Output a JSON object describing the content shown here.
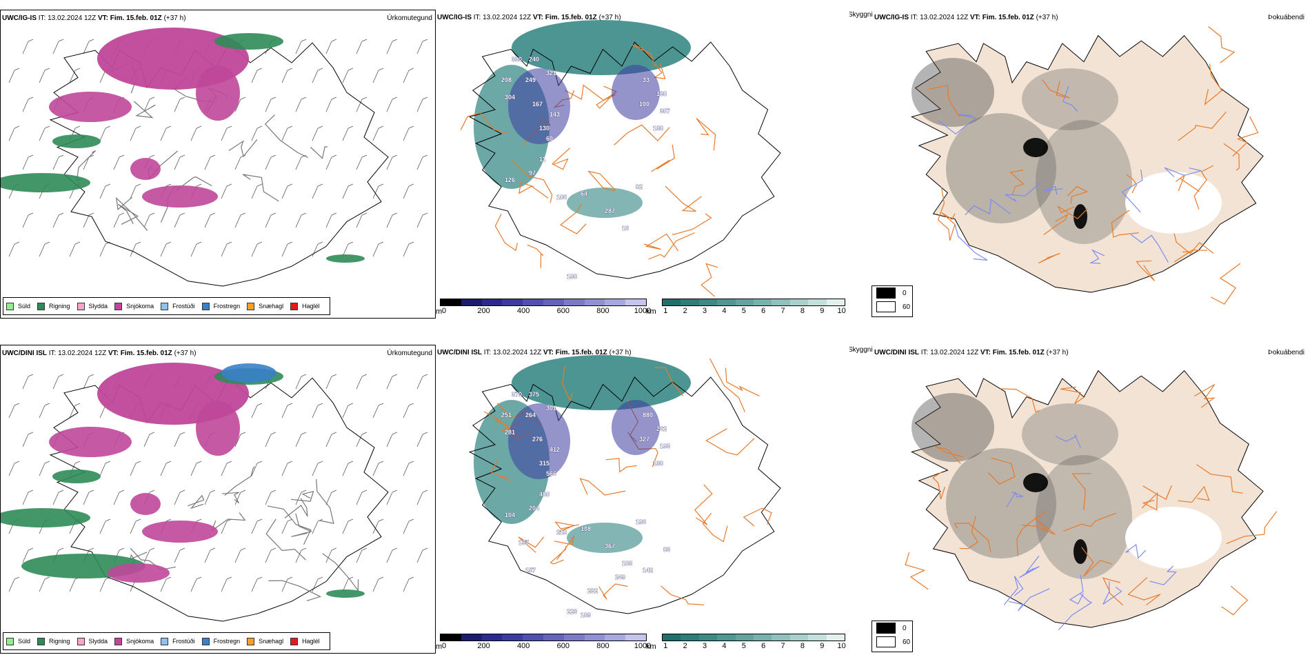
{
  "rows": [
    {
      "model": "UWC/IG-IS",
      "it_label": "IT:",
      "it_value": "13.02.2024 12Z",
      "vt_label": "VT:",
      "vt_value": "Fim. 15.feb. 01Z",
      "lead": "(+37 h)",
      "fields": {
        "precip_type": "Úrkomutegund",
        "visibility": "Skyggni",
        "fog": "Þokuábendi"
      },
      "visibility_labels": [
        "330",
        "240",
        "208",
        "249",
        "321",
        "304",
        "167",
        "143",
        "130",
        "60",
        "33",
        "130",
        "100",
        "307",
        "138",
        "11",
        "97",
        "126",
        "106",
        "64",
        "287",
        "82",
        "16",
        "198"
      ]
    },
    {
      "model": "UWC/DINI ISL",
      "it_label": "IT:",
      "it_value": "13.02.2024 12Z",
      "vt_label": "VT:",
      "vt_value": "Fim. 15.feb. 01Z",
      "lead": "(+37 h)",
      "fields": {
        "precip_type": "Úrkomutegund",
        "visibility": "Skyggni",
        "fog": "Þokuábendi"
      },
      "visibility_labels": [
        "370",
        "375",
        "251",
        "264",
        "301",
        "281",
        "276",
        "412",
        "315",
        "566",
        "880",
        "262",
        "327",
        "193",
        "130",
        "480",
        "204",
        "104",
        "218",
        "108",
        "367",
        "196",
        "183",
        "223",
        "232",
        "249",
        "142",
        "83",
        "109",
        "137",
        "157"
      ]
    }
  ],
  "precip_legend": [
    {
      "label": "Súld",
      "color": "#90ee90"
    },
    {
      "label": "Rigning",
      "color": "#2e8b57"
    },
    {
      "label": "Slydda",
      "color": "#f4a6c8"
    },
    {
      "label": "Snjókoma",
      "color": "#c0479a"
    },
    {
      "label": "Frostúði",
      "color": "#8fc1f0"
    },
    {
      "label": "Frostregn",
      "color": "#3a7fc8"
    },
    {
      "label": "Snæhagl",
      "color": "#f4a02a"
    },
    {
      "label": "Haglél",
      "color": "#e41a1c"
    }
  ],
  "elevation_bar": {
    "unit": "m",
    "ticks": [
      "0",
      "200",
      "400",
      "600",
      "800",
      "1000"
    ],
    "colors": [
      "#000000",
      "#1c1c6e",
      "#2b2b8f",
      "#3c3ca0",
      "#5050b0",
      "#6464bc",
      "#7a7ac8",
      "#9090d4",
      "#a8a8e0",
      "#c4c4ec"
    ]
  },
  "visibility_bar": {
    "unit": "km",
    "ticks": [
      "1",
      "2",
      "3",
      "4",
      "5",
      "6",
      "7",
      "8",
      "9",
      "10"
    ],
    "colors": [
      "#1f6f6b",
      "#2e7d78",
      "#3d8a85",
      "#4f9793",
      "#63a4a0",
      "#78b2ae",
      "#90c1bd",
      "#aad0cc",
      "#c4e0dd",
      "#e3f0ee"
    ]
  },
  "fog_legend": [
    {
      "label": "0",
      "color": "#000000"
    },
    {
      "label": "60",
      "color": "#ffffff"
    }
  ],
  "map_colors": {
    "coast": "#000000",
    "roads": "#e87a2a",
    "rivers": "#7d8cf0",
    "land_fog": "#f2e3d5",
    "snow": "#c0479a",
    "rain": "#2e8b57",
    "visib": "#2e8380"
  }
}
